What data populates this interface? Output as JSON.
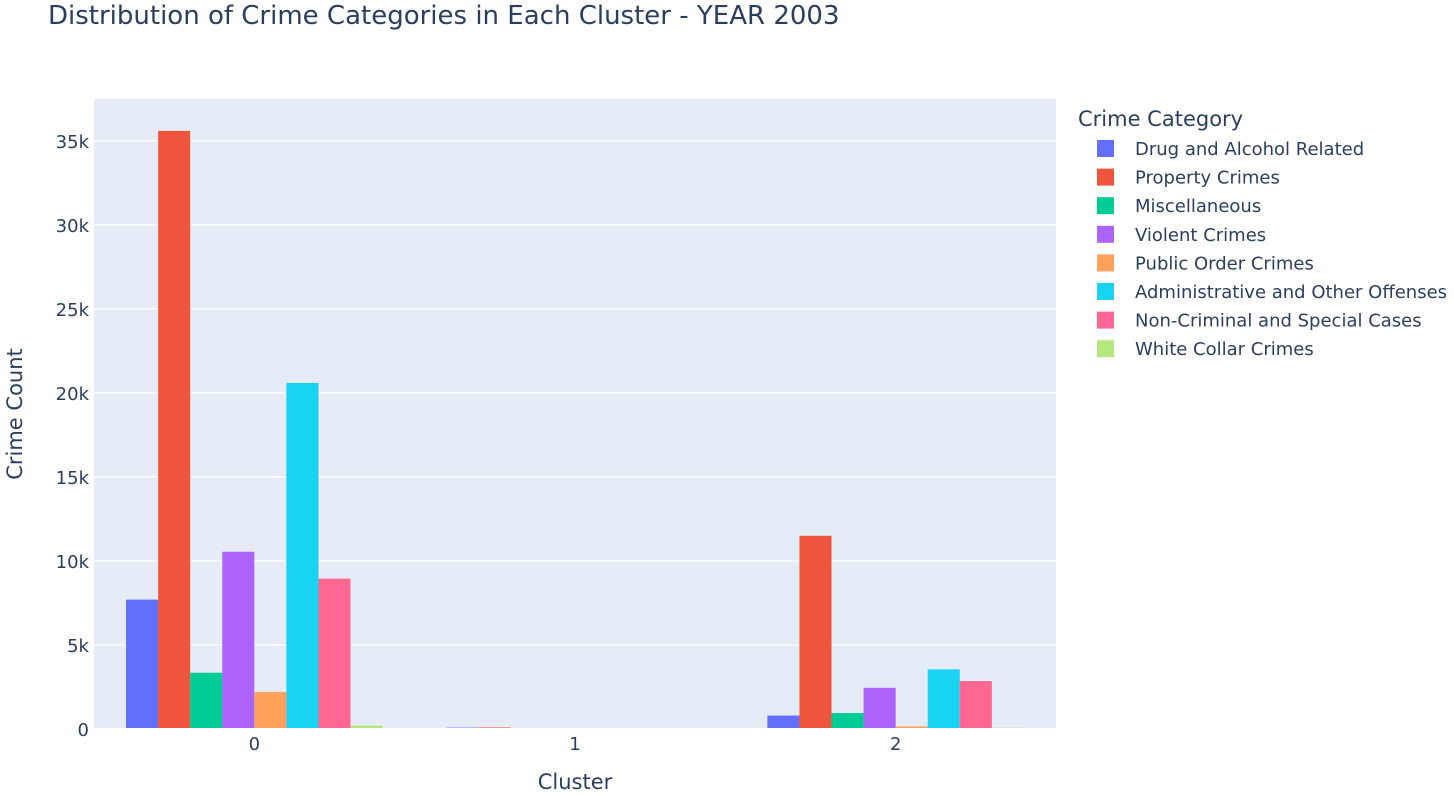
{
  "chart_data": {
    "type": "bar",
    "title": "Distribution of Crime Categories in Each Cluster - YEAR 2003",
    "xlabel": "Cluster",
    "ylabel": "Crime Count",
    "categories": [
      "0",
      "1",
      "2"
    ],
    "ylim": [
      0,
      37500
    ],
    "yticks": [
      0,
      5000,
      10000,
      15000,
      20000,
      25000,
      30000,
      35000
    ],
    "ytick_labels": [
      "0",
      "5k",
      "10k",
      "15k",
      "20k",
      "25k",
      "30k",
      "35k"
    ],
    "grid": true,
    "legend_title": "Crime Category",
    "legend_position": "right",
    "plot_bgcolor": "#E5ECF6",
    "series": [
      {
        "name": "Drug and Alcohol Related",
        "color": "#636EFA",
        "values": [
          7700,
          80,
          800
        ]
      },
      {
        "name": "Property Crimes",
        "color": "#EF553B",
        "values": [
          35600,
          90,
          11500
        ]
      },
      {
        "name": "Miscellaneous",
        "color": "#00CC96",
        "values": [
          3350,
          10,
          950
        ]
      },
      {
        "name": "Violent Crimes",
        "color": "#AB63FA",
        "values": [
          10550,
          60,
          2450
        ]
      },
      {
        "name": "Public Order Crimes",
        "color": "#FFA15A",
        "values": [
          2200,
          30,
          150
        ]
      },
      {
        "name": "Administrative and Other Offenses",
        "color": "#19D3F3",
        "values": [
          20600,
          50,
          3550
        ]
      },
      {
        "name": "Non-Criminal and Special Cases",
        "color": "#FF6692",
        "values": [
          8950,
          10,
          2850
        ]
      },
      {
        "name": "White Collar Crimes",
        "color": "#B6E880",
        "values": [
          200,
          5,
          80
        ]
      }
    ]
  }
}
